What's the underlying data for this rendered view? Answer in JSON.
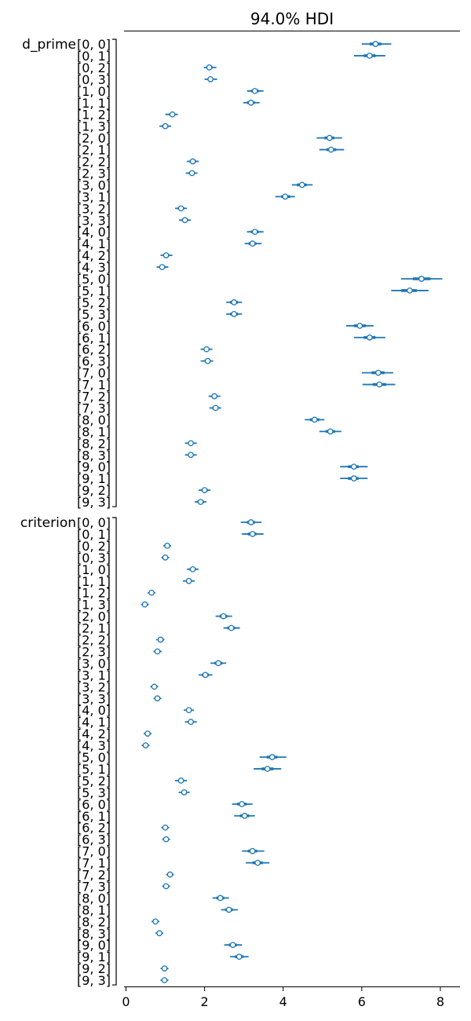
{
  "chart_data": {
    "type": "forest",
    "title": "94.0% HDI",
    "xlim": [
      -0.05,
      8.5
    ],
    "xticks": [
      0,
      2,
      4,
      6,
      8
    ],
    "grid": false,
    "color": "#1f77b4",
    "variables": [
      {
        "name": "d_prime",
        "rows": [
          {
            "label": "[0, 0]",
            "mean": 6.35,
            "iqr": [
              6.2,
              6.5
            ],
            "hdi": [
              6.0,
              6.75
            ]
          },
          {
            "label": "[0, 1]",
            "mean": 6.2,
            "iqr": [
              6.05,
              6.35
            ],
            "hdi": [
              5.8,
              6.6
            ]
          },
          {
            "label": "[0, 2]",
            "mean": 2.12,
            "iqr": [
              2.05,
              2.2
            ],
            "hdi": [
              1.98,
              2.3
            ]
          },
          {
            "label": "[0, 3]",
            "mean": 2.15,
            "iqr": [
              2.08,
              2.22
            ],
            "hdi": [
              2.0,
              2.32
            ]
          },
          {
            "label": "[1, 0]",
            "mean": 3.28,
            "iqr": [
              3.18,
              3.38
            ],
            "hdi": [
              3.08,
              3.5
            ]
          },
          {
            "label": "[1, 1]",
            "mean": 3.18,
            "iqr": [
              3.08,
              3.28
            ],
            "hdi": [
              2.98,
              3.4
            ]
          },
          {
            "label": "[1, 2]",
            "mean": 1.18,
            "iqr": [
              1.1,
              1.25
            ],
            "hdi": [
              1.0,
              1.32
            ]
          },
          {
            "label": "[1, 3]",
            "mean": 1.0,
            "iqr": [
              0.92,
              1.08
            ],
            "hdi": [
              0.85,
              1.15
            ]
          },
          {
            "label": "[2, 0]",
            "mean": 5.18,
            "iqr": [
              5.05,
              5.3
            ],
            "hdi": [
              4.85,
              5.5
            ]
          },
          {
            "label": "[2, 1]",
            "mean": 5.22,
            "iqr": [
              5.1,
              5.35
            ],
            "hdi": [
              4.92,
              5.55
            ]
          },
          {
            "label": "[2, 2]",
            "mean": 1.7,
            "iqr": [
              1.62,
              1.78
            ],
            "hdi": [
              1.55,
              1.85
            ]
          },
          {
            "label": "[2, 3]",
            "mean": 1.68,
            "iqr": [
              1.6,
              1.75
            ],
            "hdi": [
              1.52,
              1.82
            ]
          },
          {
            "label": "[3, 0]",
            "mean": 4.48,
            "iqr": [
              4.35,
              4.6
            ],
            "hdi": [
              4.22,
              4.75
            ]
          },
          {
            "label": "[3, 1]",
            "mean": 4.05,
            "iqr": [
              3.95,
              4.18
            ],
            "hdi": [
              3.8,
              4.3
            ]
          },
          {
            "label": "[3, 2]",
            "mean": 1.4,
            "iqr": [
              1.32,
              1.48
            ],
            "hdi": [
              1.25,
              1.55
            ]
          },
          {
            "label": "[3, 3]",
            "mean": 1.5,
            "iqr": [
              1.42,
              1.58
            ],
            "hdi": [
              1.35,
              1.65
            ]
          },
          {
            "label": "[4, 0]",
            "mean": 3.28,
            "iqr": [
              3.18,
              3.38
            ],
            "hdi": [
              3.08,
              3.5
            ]
          },
          {
            "label": "[4, 1]",
            "mean": 3.22,
            "iqr": [
              3.12,
              3.32
            ],
            "hdi": [
              3.02,
              3.45
            ]
          },
          {
            "label": "[4, 2]",
            "mean": 1.02,
            "iqr": [
              0.95,
              1.1
            ],
            "hdi": [
              0.88,
              1.18
            ]
          },
          {
            "label": "[4, 3]",
            "mean": 0.92,
            "iqr": [
              0.85,
              1.0
            ],
            "hdi": [
              0.78,
              1.08
            ]
          },
          {
            "label": "[5, 0]",
            "mean": 7.52,
            "iqr": [
              7.3,
              7.75
            ],
            "hdi": [
              7.0,
              8.05
            ]
          },
          {
            "label": "[5, 1]",
            "mean": 7.22,
            "iqr": [
              7.0,
              7.4
            ],
            "hdi": [
              6.75,
              7.7
            ]
          },
          {
            "label": "[5, 2]",
            "mean": 2.75,
            "iqr": [
              2.65,
              2.85
            ],
            "hdi": [
              2.55,
              2.95
            ]
          },
          {
            "label": "[5, 3]",
            "mean": 2.75,
            "iqr": [
              2.65,
              2.85
            ],
            "hdi": [
              2.55,
              2.95
            ]
          },
          {
            "label": "[6, 0]",
            "mean": 5.95,
            "iqr": [
              5.8,
              6.1
            ],
            "hdi": [
              5.6,
              6.3
            ]
          },
          {
            "label": "[6, 1]",
            "mean": 6.2,
            "iqr": [
              6.05,
              6.35
            ],
            "hdi": [
              5.8,
              6.6
            ]
          },
          {
            "label": "[6, 2]",
            "mean": 2.05,
            "iqr": [
              1.98,
              2.12
            ],
            "hdi": [
              1.9,
              2.2
            ]
          },
          {
            "label": "[6, 3]",
            "mean": 2.08,
            "iqr": [
              2.0,
              2.15
            ],
            "hdi": [
              1.9,
              2.22
            ]
          },
          {
            "label": "[7, 0]",
            "mean": 6.42,
            "iqr": [
              6.25,
              6.58
            ],
            "hdi": [
              6.0,
              6.8
            ]
          },
          {
            "label": "[7, 1]",
            "mean": 6.45,
            "iqr": [
              6.28,
              6.62
            ],
            "hdi": [
              6.02,
              6.85
            ]
          },
          {
            "label": "[7, 2]",
            "mean": 2.25,
            "iqr": [
              2.18,
              2.32
            ],
            "hdi": [
              2.1,
              2.4
            ]
          },
          {
            "label": "[7, 3]",
            "mean": 2.28,
            "iqr": [
              2.2,
              2.35
            ],
            "hdi": [
              2.12,
              2.42
            ]
          },
          {
            "label": "[8, 0]",
            "mean": 4.8,
            "iqr": [
              4.68,
              4.92
            ],
            "hdi": [
              4.55,
              5.05
            ]
          },
          {
            "label": "[8, 1]",
            "mean": 5.2,
            "iqr": [
              5.08,
              5.32
            ],
            "hdi": [
              4.92,
              5.48
            ]
          },
          {
            "label": "[8, 2]",
            "mean": 1.65,
            "iqr": [
              1.58,
              1.72
            ],
            "hdi": [
              1.5,
              1.8
            ]
          },
          {
            "label": "[8, 3]",
            "mean": 1.65,
            "iqr": [
              1.58,
              1.72
            ],
            "hdi": [
              1.5,
              1.8
            ]
          },
          {
            "label": "[9, 0]",
            "mean": 5.8,
            "iqr": [
              5.65,
              5.92
            ],
            "hdi": [
              5.45,
              6.15
            ]
          },
          {
            "label": "[9, 1]",
            "mean": 5.8,
            "iqr": [
              5.65,
              5.92
            ],
            "hdi": [
              5.45,
              6.15
            ]
          },
          {
            "label": "[9, 2]",
            "mean": 2.0,
            "iqr": [
              1.92,
              2.08
            ],
            "hdi": [
              1.85,
              2.15
            ]
          },
          {
            "label": "[9, 3]",
            "mean": 1.9,
            "iqr": [
              1.82,
              1.98
            ],
            "hdi": [
              1.75,
              2.05
            ]
          }
        ]
      },
      {
        "name": "criterion",
        "rows": [
          {
            "label": "[0, 0]",
            "mean": 3.18,
            "iqr": [
              3.08,
              3.28
            ],
            "hdi": [
              2.92,
              3.45
            ]
          },
          {
            "label": "[0, 1]",
            "mean": 3.22,
            "iqr": [
              3.1,
              3.32
            ],
            "hdi": [
              2.95,
              3.5
            ]
          },
          {
            "label": "[0, 2]",
            "mean": 1.05,
            "iqr": [
              1.0,
              1.1
            ],
            "hdi": [
              0.95,
              1.15
            ]
          },
          {
            "label": "[0, 3]",
            "mean": 1.0,
            "iqr": [
              0.95,
              1.05
            ],
            "hdi": [
              0.9,
              1.1
            ]
          },
          {
            "label": "[1, 0]",
            "mean": 1.7,
            "iqr": [
              1.62,
              1.78
            ],
            "hdi": [
              1.55,
              1.85
            ]
          },
          {
            "label": "[1, 1]",
            "mean": 1.6,
            "iqr": [
              1.53,
              1.67
            ],
            "hdi": [
              1.45,
              1.75
            ]
          },
          {
            "label": "[1, 2]",
            "mean": 0.65,
            "iqr": [
              0.6,
              0.7
            ],
            "hdi": [
              0.55,
              0.75
            ]
          },
          {
            "label": "[1, 3]",
            "mean": 0.48,
            "iqr": [
              0.43,
              0.53
            ],
            "hdi": [
              0.38,
              0.58
            ]
          },
          {
            "label": "[2, 0]",
            "mean": 2.48,
            "iqr": [
              2.38,
              2.58
            ],
            "hdi": [
              2.28,
              2.7
            ]
          },
          {
            "label": "[2, 1]",
            "mean": 2.68,
            "iqr": [
              2.58,
              2.78
            ],
            "hdi": [
              2.48,
              2.9
            ]
          },
          {
            "label": "[2, 2]",
            "mean": 0.88,
            "iqr": [
              0.83,
              0.93
            ],
            "hdi": [
              0.77,
              0.98
            ]
          },
          {
            "label": "[2, 3]",
            "mean": 0.8,
            "iqr": [
              0.75,
              0.86
            ],
            "hdi": [
              0.7,
              0.91
            ]
          },
          {
            "label": "[3, 0]",
            "mean": 2.35,
            "iqr": [
              2.25,
              2.45
            ],
            "hdi": [
              2.15,
              2.55
            ]
          },
          {
            "label": "[3, 1]",
            "mean": 2.02,
            "iqr": [
              1.93,
              2.11
            ],
            "hdi": [
              1.85,
              2.2
            ]
          },
          {
            "label": "[3, 2]",
            "mean": 0.72,
            "iqr": [
              0.67,
              0.77
            ],
            "hdi": [
              0.62,
              0.82
            ]
          },
          {
            "label": "[3, 3]",
            "mean": 0.8,
            "iqr": [
              0.75,
              0.85
            ],
            "hdi": [
              0.7,
              0.9
            ]
          },
          {
            "label": "[4, 0]",
            "mean": 1.6,
            "iqr": [
              1.53,
              1.67
            ],
            "hdi": [
              1.47,
              1.73
            ]
          },
          {
            "label": "[4, 1]",
            "mean": 1.65,
            "iqr": [
              1.58,
              1.72
            ],
            "hdi": [
              1.5,
              1.8
            ]
          },
          {
            "label": "[4, 2]",
            "mean": 0.55,
            "iqr": [
              0.5,
              0.6
            ],
            "hdi": [
              0.45,
              0.65
            ]
          },
          {
            "label": "[4, 3]",
            "mean": 0.5,
            "iqr": [
              0.45,
              0.55
            ],
            "hdi": [
              0.4,
              0.6
            ]
          },
          {
            "label": "[5, 0]",
            "mean": 3.72,
            "iqr": [
              3.58,
              3.85
            ],
            "hdi": [
              3.4,
              4.08
            ]
          },
          {
            "label": "[5, 1]",
            "mean": 3.6,
            "iqr": [
              3.45,
              3.75
            ],
            "hdi": [
              3.25,
              3.95
            ]
          },
          {
            "label": "[5, 2]",
            "mean": 1.4,
            "iqr": [
              1.33,
              1.47
            ],
            "hdi": [
              1.25,
              1.55
            ]
          },
          {
            "label": "[5, 3]",
            "mean": 1.48,
            "iqr": [
              1.41,
              1.55
            ],
            "hdi": [
              1.34,
              1.62
            ]
          },
          {
            "label": "[6, 0]",
            "mean": 2.95,
            "iqr": [
              2.83,
              3.07
            ],
            "hdi": [
              2.7,
              3.22
            ]
          },
          {
            "label": "[6, 1]",
            "mean": 3.02,
            "iqr": [
              2.9,
              3.14
            ],
            "hdi": [
              2.75,
              3.28
            ]
          },
          {
            "label": "[6, 2]",
            "mean": 1.0,
            "iqr": [
              0.95,
              1.05
            ],
            "hdi": [
              0.9,
              1.1
            ]
          },
          {
            "label": "[6, 3]",
            "mean": 1.02,
            "iqr": [
              0.97,
              1.07
            ],
            "hdi": [
              0.92,
              1.12
            ]
          },
          {
            "label": "[7, 0]",
            "mean": 3.22,
            "iqr": [
              3.1,
              3.34
            ],
            "hdi": [
              2.95,
              3.52
            ]
          },
          {
            "label": "[7, 1]",
            "mean": 3.35,
            "iqr": [
              3.22,
              3.48
            ],
            "hdi": [
              3.05,
              3.65
            ]
          },
          {
            "label": "[7, 2]",
            "mean": 1.12,
            "iqr": [
              1.07,
              1.17
            ],
            "hdi": [
              1.02,
              1.22
            ]
          },
          {
            "label": "[7, 3]",
            "mean": 1.02,
            "iqr": [
              0.97,
              1.07
            ],
            "hdi": [
              0.92,
              1.12
            ]
          },
          {
            "label": "[8, 0]",
            "mean": 2.4,
            "iqr": [
              2.3,
              2.5
            ],
            "hdi": [
              2.2,
              2.62
            ]
          },
          {
            "label": "[8, 1]",
            "mean": 2.62,
            "iqr": [
              2.52,
              2.72
            ],
            "hdi": [
              2.42,
              2.85
            ]
          },
          {
            "label": "[8, 2]",
            "mean": 0.75,
            "iqr": [
              0.7,
              0.8
            ],
            "hdi": [
              0.65,
              0.85
            ]
          },
          {
            "label": "[8, 3]",
            "mean": 0.85,
            "iqr": [
              0.8,
              0.9
            ],
            "hdi": [
              0.75,
              0.95
            ]
          },
          {
            "label": "[9, 0]",
            "mean": 2.72,
            "iqr": [
              2.62,
              2.82
            ],
            "hdi": [
              2.5,
              2.95
            ]
          },
          {
            "label": "[9, 1]",
            "mean": 2.88,
            "iqr": [
              2.77,
              2.99
            ],
            "hdi": [
              2.65,
              3.12
            ]
          },
          {
            "label": "[9, 2]",
            "mean": 0.98,
            "iqr": [
              0.93,
              1.03
            ],
            "hdi": [
              0.88,
              1.08
            ]
          },
          {
            "label": "[9, 3]",
            "mean": 0.98,
            "iqr": [
              0.93,
              1.03
            ],
            "hdi": [
              0.88,
              1.08
            ]
          }
        ]
      }
    ]
  }
}
